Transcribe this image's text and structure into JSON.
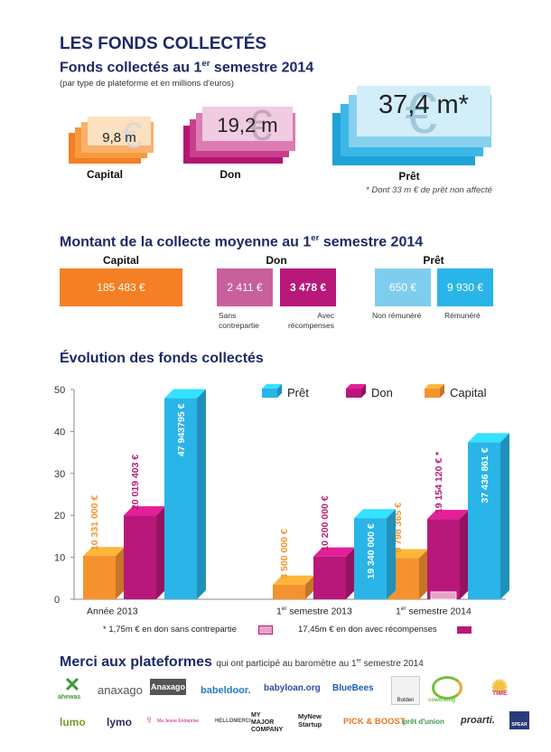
{
  "header": {
    "title": "LES FONDS COLLECTÉS",
    "subtitle_main": "Fonds collectés au 1",
    "subtitle_sup": "er",
    "subtitle_rest": " semestre 2014",
    "note": "(par type de plateforme et en millions d'euros)"
  },
  "stacks": [
    {
      "value": "9,8 m",
      "label": "Capital"
    },
    {
      "value": "19,2 m",
      "label": "Don"
    },
    {
      "value": "37,4 m*",
      "label": "Prêt"
    }
  ],
  "stack_footnote": "* Dont 33 m € de prêt non affecté",
  "average": {
    "title_main": "Montant de la collecte moyenne au 1",
    "title_sup": "er",
    "title_rest": " semestre 2014",
    "capital": {
      "header": "Capital",
      "value": "185 483 €"
    },
    "don": {
      "header": "Don",
      "a_value": "2 411 €",
      "a_label1": "Sans",
      "a_label2": "contrepartie",
      "b_value": "3 478 €",
      "b_label1": "Avec",
      "b_label2": "récompenses"
    },
    "pret": {
      "header": "Prêt",
      "a_value": "650 €",
      "a_label": "Non rémunéré",
      "b_value": "9 930 €",
      "b_label": "Rémunéré"
    }
  },
  "evolution_title": "Évolution des fonds collectés",
  "chart_data": {
    "type": "bar",
    "title": "Évolution des fonds collectés",
    "ylim": [
      0,
      50
    ],
    "yticks": [
      "0",
      "10",
      "20",
      "30",
      "40",
      "50"
    ],
    "categories_main": [
      "Année 2013",
      "1",
      "1"
    ],
    "categories_sup": [
      "",
      "er",
      "er"
    ],
    "categories_rest": [
      "",
      " semestre 2013",
      " semestre 2014"
    ],
    "series": [
      {
        "name": "Capital",
        "color": "#f5922f",
        "values": [
          10.33,
          3.5,
          9.8
        ],
        "labels": [
          "10 331 000 €",
          "3 500 000 €",
          "9 798 365 €"
        ]
      },
      {
        "name": "Don",
        "color": "#b8187a",
        "values": [
          20.02,
          10.2,
          19.15
        ],
        "labels": [
          "20 019 403 €",
          "10 200 000 €",
          "19 154 120 € *"
        ]
      },
      {
        "name": "Prêt",
        "color": "#29b5e8",
        "values": [
          47.94,
          19.34,
          37.44
        ],
        "labels": [
          "47 943795 €",
          "19   340 000 €",
          "37 436 861 €"
        ]
      }
    ],
    "legend_order": [
      "Prêt",
      "Don",
      "Capital"
    ],
    "legend_position": "top-right",
    "annotation_a": "*  1,75m € en don sans contrepartie",
    "annotation_b": "17,45m € en don avec récompenses"
  },
  "merci": {
    "title": "Merci aux plateformes",
    "text_main": "qui ont participé au baromètre au 1",
    "text_sup": "er",
    "text_rest": " semestre 2014"
  },
  "logos_row1": [
    "ahewas",
    "anaxago",
    "Anaxago",
    "babeldoor.",
    "babyloan.org",
    "BlueBees",
    "Bolden",
    "coworking",
    "TIME"
  ],
  "logos_row2": [
    "lumo",
    "lymo",
    "Ma Jeune Entreprise",
    "HELLOMERCI",
    "MY MAJOR COMPANY",
    "MyNew Startup",
    "PICK & BOOST",
    "prêt d'union",
    "proarti.",
    "SPEAR"
  ],
  "colors": {
    "navy": "#1d2a66",
    "capital": "#f5922f",
    "don": "#b8187a",
    "pret": "#29b5e8"
  }
}
